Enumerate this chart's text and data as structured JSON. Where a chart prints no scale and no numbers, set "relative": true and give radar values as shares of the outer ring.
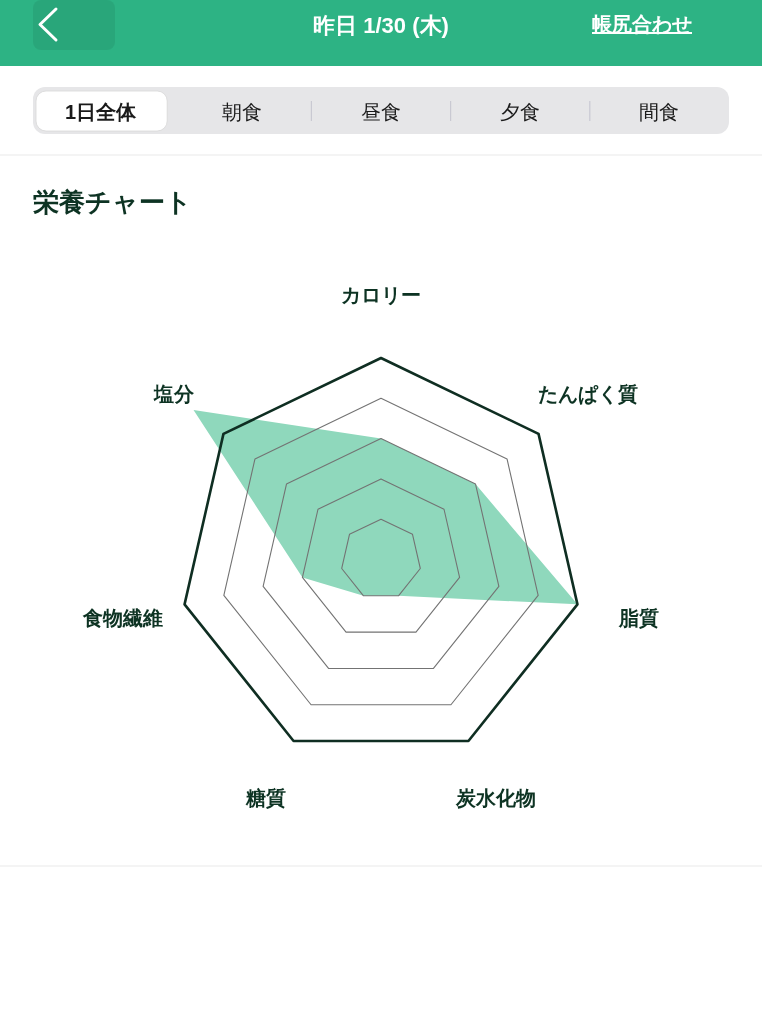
{
  "chart_data": {
    "type": "radar",
    "title": "栄養チャート",
    "categories": [
      "カロリー",
      "たんぱく質",
      "脂質",
      "炭水化物",
      "糖質",
      "食物繊維",
      "塩分"
    ],
    "series": [
      {
        "color": "#8fd8bc",
        "values": [
          0.6,
          0.6,
          1.0,
          0.2,
          0.2,
          0.4,
          1.19
        ]
      }
    ],
    "relative": true,
    "grid": true,
    "annotations": [
      "昨日 1/30 (木)",
      "帳尻合わせ",
      "1日全体",
      "朝食",
      "昼食",
      "夕食",
      "間食"
    ]
  }
}
